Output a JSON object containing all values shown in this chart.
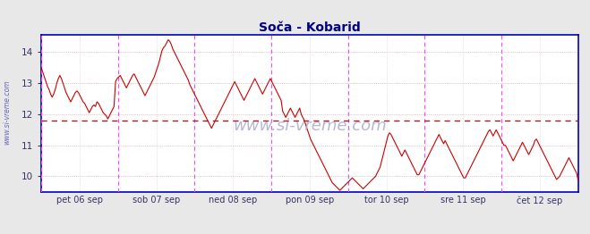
{
  "title": "Soča - Kobarid",
  "ylim": [
    9.5,
    14.55
  ],
  "yticks": [
    10,
    11,
    12,
    13,
    14
  ],
  "bg_color": "#e8e8e8",
  "plot_bg_color": "#ffffff",
  "line_color": "#cc0000",
  "grid_color": "#cccccc",
  "grid_color_h": "#cc9999",
  "axis_color": "#0000bb",
  "vline_color": "#ff44ff",
  "hline_color": "#cc0000",
  "hline_y": 11.8,
  "xlabel_labels": [
    "pet 06 sep",
    "sob 07 sep",
    "ned 08 sep",
    "pon 09 sep",
    "tor 10 sep",
    "sre 11 sep",
    "čet 12 sep"
  ],
  "title_color": "#000088",
  "watermark": "www.si-vreme.com",
  "watermark_color": "#aaaacc",
  "sidebar_text": "www.si-vreme.com",
  "sidebar_color": "#6666bb",
  "temperature_data": [
    13.5,
    13.35,
    13.2,
    13.05,
    12.9,
    12.8,
    12.65,
    12.55,
    12.65,
    12.8,
    13.0,
    13.15,
    13.25,
    13.15,
    13.0,
    12.85,
    12.7,
    12.6,
    12.5,
    12.4,
    12.5,
    12.6,
    12.7,
    12.75,
    12.7,
    12.6,
    12.5,
    12.4,
    12.35,
    12.25,
    12.15,
    12.05,
    12.15,
    12.25,
    12.3,
    12.25,
    12.4,
    12.35,
    12.25,
    12.15,
    12.05,
    12.0,
    11.95,
    11.85,
    11.95,
    12.05,
    12.15,
    12.25,
    13.05,
    13.15,
    13.2,
    13.25,
    13.15,
    13.05,
    12.95,
    12.85,
    12.95,
    13.05,
    13.15,
    13.25,
    13.3,
    13.2,
    13.1,
    13.0,
    12.9,
    12.8,
    12.7,
    12.6,
    12.7,
    12.8,
    12.9,
    13.0,
    13.1,
    13.2,
    13.35,
    13.5,
    13.65,
    13.85,
    14.05,
    14.15,
    14.2,
    14.3,
    14.4,
    14.35,
    14.25,
    14.1,
    14.0,
    13.9,
    13.8,
    13.7,
    13.6,
    13.5,
    13.4,
    13.3,
    13.2,
    13.1,
    12.95,
    12.85,
    12.75,
    12.65,
    12.55,
    12.45,
    12.35,
    12.25,
    12.15,
    12.05,
    11.95,
    11.85,
    11.75,
    11.65,
    11.55,
    11.65,
    11.75,
    11.85,
    11.95,
    12.05,
    12.15,
    12.25,
    12.35,
    12.45,
    12.55,
    12.65,
    12.75,
    12.85,
    12.95,
    13.05,
    12.95,
    12.85,
    12.75,
    12.65,
    12.55,
    12.45,
    12.55,
    12.65,
    12.75,
    12.85,
    12.95,
    13.05,
    13.15,
    13.05,
    12.95,
    12.85,
    12.75,
    12.65,
    12.75,
    12.85,
    12.95,
    13.05,
    13.15,
    13.05,
    12.95,
    12.85,
    12.75,
    12.65,
    12.55,
    12.45,
    12.1,
    12.0,
    11.9,
    12.0,
    12.1,
    12.2,
    12.1,
    12.0,
    11.9,
    12.0,
    12.1,
    12.2,
    12.0,
    11.9,
    11.8,
    11.65,
    11.5,
    11.35,
    11.2,
    11.1,
    11.0,
    10.9,
    10.8,
    10.7,
    10.6,
    10.5,
    10.4,
    10.3,
    10.2,
    10.1,
    10.0,
    9.9,
    9.8,
    9.75,
    9.7,
    9.65,
    9.6,
    9.55,
    9.6,
    9.65,
    9.7,
    9.75,
    9.8,
    9.85,
    9.9,
    9.95,
    9.9,
    9.85,
    9.8,
    9.75,
    9.7,
    9.65,
    9.6,
    9.65,
    9.7,
    9.75,
    9.8,
    9.85,
    9.9,
    9.95,
    10.0,
    10.1,
    10.2,
    10.3,
    10.5,
    10.7,
    10.9,
    11.1,
    11.3,
    11.4,
    11.35,
    11.25,
    11.15,
    11.05,
    10.95,
    10.85,
    10.75,
    10.65,
    10.75,
    10.85,
    10.75,
    10.65,
    10.55,
    10.45,
    10.35,
    10.25,
    10.15,
    10.05,
    10.05,
    10.15,
    10.25,
    10.35,
    10.45,
    10.55,
    10.65,
    10.75,
    10.85,
    10.95,
    11.05,
    11.15,
    11.25,
    11.35,
    11.25,
    11.15,
    11.05,
    11.15,
    11.05,
    10.95,
    10.85,
    10.75,
    10.65,
    10.55,
    10.45,
    10.35,
    10.25,
    10.15,
    10.05,
    9.95,
    9.95,
    10.05,
    10.15,
    10.25,
    10.35,
    10.45,
    10.55,
    10.65,
    10.75,
    10.85,
    10.95,
    11.05,
    11.15,
    11.25,
    11.35,
    11.45,
    11.5,
    11.4,
    11.3,
    11.4,
    11.5,
    11.4,
    11.3,
    11.2,
    11.1,
    11.0,
    11.0,
    10.9,
    10.8,
    10.7,
    10.6,
    10.5,
    10.6,
    10.7,
    10.8,
    10.9,
    11.0,
    11.1,
    11.0,
    10.9,
    10.8,
    10.7,
    10.8,
    10.9,
    11.0,
    11.15,
    11.2,
    11.1,
    11.0,
    10.9,
    10.8,
    10.7,
    10.6,
    10.5,
    10.4,
    10.3,
    10.2,
    10.1,
    10.0,
    9.9,
    9.95,
    10.0,
    10.1,
    10.2,
    10.3,
    10.4,
    10.5,
    10.6,
    10.5,
    10.4,
    10.3,
    10.2,
    10.1,
    9.85
  ]
}
